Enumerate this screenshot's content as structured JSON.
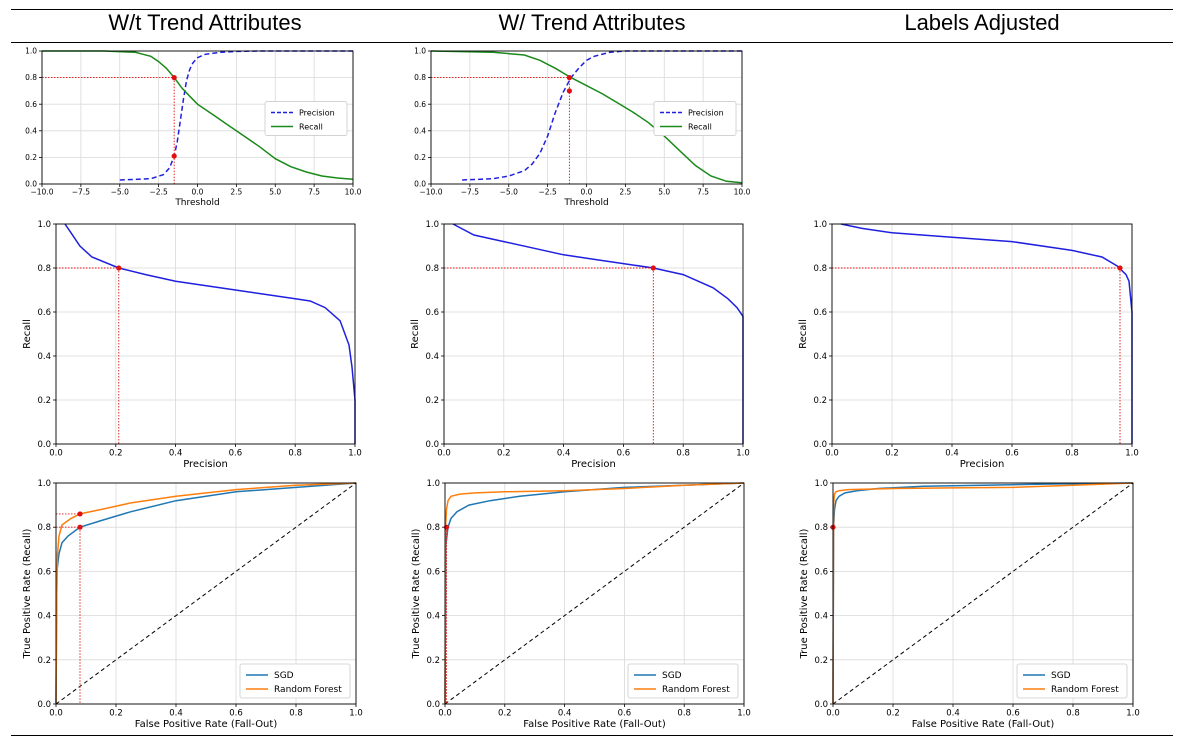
{
  "column_titles": [
    "W/t Trend Attributes",
    "W/ Trend Attributes",
    "Labels Adjusted"
  ],
  "colors": {
    "precision": "#1f1fe0",
    "recall": "#1a8a1a",
    "pr_curve": "#1f1fe0",
    "sgd": "#1f77b4",
    "random_forest": "#ff7f0e",
    "marker": "#e01010",
    "grid": "#d9d9d9",
    "diagonal": "#000000"
  },
  "chart_data": [
    {
      "id": "thr-1",
      "type": "line",
      "xlabel": "Threshold",
      "ylabel": "",
      "xlim": [
        -10,
        10
      ],
      "ylim": [
        0,
        1
      ],
      "xticks": [
        "-10.0",
        "-7.5",
        "-5.0",
        "-2.5",
        "0.0",
        "2.5",
        "5.0",
        "7.5",
        "10.0"
      ],
      "yticks": [
        "0.0",
        "0.2",
        "0.4",
        "0.6",
        "0.8",
        "1.0"
      ],
      "legend": [
        "Precision",
        "Recall"
      ],
      "legend_position": "center-right",
      "series": [
        {
          "name": "Precision",
          "style": "dashed",
          "x": [
            -5,
            -3,
            -2.2,
            -1.8,
            -1.5,
            -1.3,
            -1.1,
            -0.9,
            -0.7,
            -0.5,
            -0.3,
            0,
            0.5,
            1.5,
            2.5,
            4,
            10
          ],
          "y": [
            0.03,
            0.04,
            0.07,
            0.12,
            0.21,
            0.32,
            0.48,
            0.64,
            0.78,
            0.86,
            0.91,
            0.95,
            0.975,
            0.99,
            0.997,
            1.0,
            1.0
          ]
        },
        {
          "name": "Recall",
          "style": "solid",
          "x": [
            -10,
            -6,
            -4,
            -3.5,
            -3,
            -2.5,
            -2,
            -1.5,
            -1,
            -0.5,
            0,
            1,
            2,
            3,
            4,
            5,
            6,
            7,
            8,
            9,
            10
          ],
          "y": [
            1.0,
            1.0,
            0.99,
            0.975,
            0.96,
            0.92,
            0.87,
            0.8,
            0.72,
            0.66,
            0.6,
            0.52,
            0.44,
            0.36,
            0.28,
            0.19,
            0.13,
            0.09,
            0.06,
            0.045,
            0.035
          ]
        }
      ],
      "reference": {
        "threshold": -1.5,
        "recall": 0.8,
        "precision": 0.21
      }
    },
    {
      "id": "thr-2",
      "type": "line",
      "xlabel": "Threshold",
      "ylabel": "",
      "xlim": [
        -10,
        10
      ],
      "ylim": [
        0,
        1
      ],
      "xticks": [
        "-10.0",
        "-7.5",
        "-5.0",
        "-2.5",
        "0.0",
        "2.5",
        "5.0",
        "7.5",
        "10.0"
      ],
      "yticks": [
        "0.0",
        "0.2",
        "0.4",
        "0.6",
        "0.8",
        "1.0"
      ],
      "legend": [
        "Precision",
        "Recall"
      ],
      "legend_position": "center-right",
      "series": [
        {
          "name": "Precision",
          "style": "dashed",
          "x": [
            -8,
            -6,
            -5,
            -4,
            -3.5,
            -3,
            -2.5,
            -2,
            -1.5,
            -1,
            -0.5,
            0,
            0.5,
            1.5,
            2.5,
            10
          ],
          "y": [
            0.03,
            0.04,
            0.06,
            0.1,
            0.15,
            0.23,
            0.36,
            0.54,
            0.69,
            0.8,
            0.87,
            0.93,
            0.96,
            0.99,
            1.0,
            1.0
          ]
        },
        {
          "name": "Recall",
          "style": "solid",
          "x": [
            -10,
            -6,
            -4,
            -3,
            -2,
            -1,
            0,
            1,
            2,
            3,
            4,
            5,
            6,
            7,
            8,
            9,
            10
          ],
          "y": [
            1.0,
            0.99,
            0.97,
            0.93,
            0.87,
            0.8,
            0.74,
            0.68,
            0.61,
            0.54,
            0.46,
            0.36,
            0.25,
            0.14,
            0.06,
            0.02,
            0.01
          ]
        }
      ],
      "reference": {
        "threshold": -1.1,
        "recall": 0.8,
        "precision": 0.7
      }
    },
    {
      "id": "pr-1",
      "type": "line",
      "xlabel": "Precision",
      "ylabel": "Recall",
      "xlim": [
        0,
        1
      ],
      "ylim": [
        0,
        1
      ],
      "xticks": [
        "0.0",
        "0.2",
        "0.4",
        "0.6",
        "0.8",
        "1.0"
      ],
      "yticks": [
        "0.0",
        "0.2",
        "0.4",
        "0.6",
        "0.8",
        "1.0"
      ],
      "series": [
        {
          "name": "",
          "style": "solid",
          "x": [
            0.03,
            0.05,
            0.08,
            0.12,
            0.21,
            0.3,
            0.4,
            0.5,
            0.6,
            0.7,
            0.8,
            0.85,
            0.9,
            0.95,
            0.98,
            0.99,
            1.0,
            1.0
          ],
          "y": [
            1.0,
            0.96,
            0.9,
            0.85,
            0.8,
            0.77,
            0.74,
            0.72,
            0.7,
            0.68,
            0.66,
            0.65,
            0.62,
            0.56,
            0.45,
            0.35,
            0.2,
            0.0
          ]
        }
      ],
      "reference": {
        "precision": 0.21,
        "recall": 0.8
      }
    },
    {
      "id": "pr-2",
      "type": "line",
      "xlabel": "Precision",
      "ylabel": "Recall",
      "xlim": [
        0,
        1
      ],
      "ylim": [
        0,
        1
      ],
      "xticks": [
        "0.0",
        "0.2",
        "0.4",
        "0.6",
        "0.8",
        "1.0"
      ],
      "yticks": [
        "0.0",
        "0.2",
        "0.4",
        "0.6",
        "0.8",
        "1.0"
      ],
      "series": [
        {
          "name": "",
          "style": "solid",
          "x": [
            0.03,
            0.1,
            0.2,
            0.3,
            0.4,
            0.5,
            0.6,
            0.7,
            0.8,
            0.9,
            0.95,
            0.98,
            1.0,
            1.0
          ],
          "y": [
            1.0,
            0.95,
            0.92,
            0.89,
            0.86,
            0.84,
            0.82,
            0.8,
            0.77,
            0.71,
            0.66,
            0.62,
            0.58,
            0.0
          ]
        }
      ],
      "reference": {
        "precision": 0.7,
        "recall": 0.8
      }
    },
    {
      "id": "pr-3",
      "type": "line",
      "xlabel": "Precision",
      "ylabel": "Recall",
      "xlim": [
        0,
        1
      ],
      "ylim": [
        0,
        1
      ],
      "xticks": [
        "0.0",
        "0.2",
        "0.4",
        "0.6",
        "0.8",
        "1.0"
      ],
      "yticks": [
        "0.0",
        "0.2",
        "0.4",
        "0.6",
        "0.8",
        "1.0"
      ],
      "series": [
        {
          "name": "",
          "style": "solid",
          "x": [
            0.03,
            0.1,
            0.2,
            0.4,
            0.6,
            0.8,
            0.9,
            0.95,
            0.98,
            0.99,
            1.0,
            1.0
          ],
          "y": [
            1.0,
            0.98,
            0.96,
            0.94,
            0.92,
            0.88,
            0.85,
            0.81,
            0.77,
            0.74,
            0.6,
            0.0
          ]
        }
      ],
      "reference": {
        "precision": 0.96,
        "recall": 0.8
      }
    },
    {
      "id": "roc-1",
      "type": "line",
      "xlabel": "False Positive Rate (Fall-Out)",
      "ylabel": "True Positive Rate (Recall)",
      "xlim": [
        0,
        1
      ],
      "ylim": [
        0,
        1
      ],
      "xticks": [
        "0.0",
        "0.2",
        "0.4",
        "0.6",
        "0.8",
        "1.0"
      ],
      "yticks": [
        "0.0",
        "0.2",
        "0.4",
        "0.6",
        "0.8",
        "1.0"
      ],
      "legend": [
        "SGD",
        "Random Forest"
      ],
      "legend_position": "bottom-right",
      "series": [
        {
          "name": "SGD",
          "style": "solid",
          "x": [
            0,
            0.003,
            0.01,
            0.02,
            0.04,
            0.08,
            0.15,
            0.25,
            0.4,
            0.6,
            0.8,
            1.0
          ],
          "y": [
            0,
            0.6,
            0.68,
            0.73,
            0.76,
            0.8,
            0.83,
            0.87,
            0.92,
            0.96,
            0.98,
            1.0
          ]
        },
        {
          "name": "Random Forest",
          "style": "solid",
          "x": [
            0,
            0.002,
            0.005,
            0.01,
            0.02,
            0.05,
            0.08,
            0.15,
            0.25,
            0.4,
            0.6,
            0.8,
            1.0
          ],
          "y": [
            0,
            0.45,
            0.68,
            0.76,
            0.81,
            0.84,
            0.86,
            0.88,
            0.91,
            0.94,
            0.97,
            0.99,
            1.0
          ]
        },
        {
          "name": "",
          "style": "dashed",
          "x": [
            0,
            1
          ],
          "y": [
            0,
            1
          ]
        }
      ],
      "reference": {
        "fpr": 0.08,
        "recall_sgd": 0.8,
        "recall_rf": 0.86
      }
    },
    {
      "id": "roc-2",
      "type": "line",
      "xlabel": "False Positive Rate (Fall-Out)",
      "ylabel": "True Positive Rate (Recall)",
      "xlim": [
        0,
        1
      ],
      "ylim": [
        0,
        1
      ],
      "xticks": [
        "0.0",
        "0.2",
        "0.4",
        "0.6",
        "0.8",
        "1.0"
      ],
      "yticks": [
        "0.0",
        "0.2",
        "0.4",
        "0.6",
        "0.8",
        "1.0"
      ],
      "legend": [
        "SGD",
        "Random Forest"
      ],
      "legend_position": "bottom-right",
      "series": [
        {
          "name": "SGD",
          "style": "solid",
          "x": [
            0,
            0.003,
            0.01,
            0.02,
            0.04,
            0.08,
            0.15,
            0.25,
            0.4,
            0.6,
            0.8,
            1.0
          ],
          "y": [
            0,
            0.72,
            0.8,
            0.84,
            0.87,
            0.9,
            0.92,
            0.94,
            0.96,
            0.98,
            0.99,
            1.0
          ]
        },
        {
          "name": "Random Forest",
          "style": "solid",
          "x": [
            0,
            0.002,
            0.005,
            0.01,
            0.02,
            0.05,
            0.1,
            0.2,
            0.4,
            0.6,
            0.8,
            1.0
          ],
          "y": [
            0,
            0.8,
            0.88,
            0.92,
            0.94,
            0.95,
            0.955,
            0.96,
            0.965,
            0.975,
            0.99,
            1.0
          ]
        },
        {
          "name": "",
          "style": "dashed",
          "x": [
            0,
            1
          ],
          "y": [
            0,
            1
          ]
        }
      ],
      "reference": {
        "fpr": 0.005,
        "recall_sgd": 0.8,
        "recall_rf": 0.8
      }
    },
    {
      "id": "roc-3",
      "type": "line",
      "xlabel": "False Positive Rate (Fall-Out)",
      "ylabel": "True Positive Rate (Recall)",
      "xlim": [
        0,
        1
      ],
      "ylim": [
        0,
        1
      ],
      "xticks": [
        "0.0",
        "0.2",
        "0.4",
        "0.6",
        "0.8",
        "1.0"
      ],
      "yticks": [
        "0.0",
        "0.2",
        "0.4",
        "0.6",
        "0.8",
        "1.0"
      ],
      "legend": [
        "SGD",
        "Random Forest"
      ],
      "legend_position": "bottom-right",
      "series": [
        {
          "name": "SGD",
          "style": "solid",
          "x": [
            0,
            0.002,
            0.005,
            0.01,
            0.02,
            0.04,
            0.08,
            0.15,
            0.3,
            0.5,
            0.7,
            1.0
          ],
          "y": [
            0,
            0.8,
            0.88,
            0.92,
            0.94,
            0.955,
            0.965,
            0.975,
            0.985,
            0.99,
            0.995,
            1.0
          ]
        },
        {
          "name": "Random Forest",
          "style": "solid",
          "x": [
            0,
            0.002,
            0.005,
            0.01,
            0.02,
            0.05,
            0.1,
            0.2,
            0.4,
            0.6,
            0.8,
            1.0
          ],
          "y": [
            0,
            0.9,
            0.95,
            0.96,
            0.965,
            0.97,
            0.972,
            0.975,
            0.978,
            0.98,
            0.99,
            1.0
          ]
        },
        {
          "name": "",
          "style": "dashed",
          "x": [
            0,
            1
          ],
          "y": [
            0,
            1
          ]
        }
      ],
      "reference": {
        "fpr": 0.0,
        "recall_sgd": 0.8
      }
    }
  ]
}
